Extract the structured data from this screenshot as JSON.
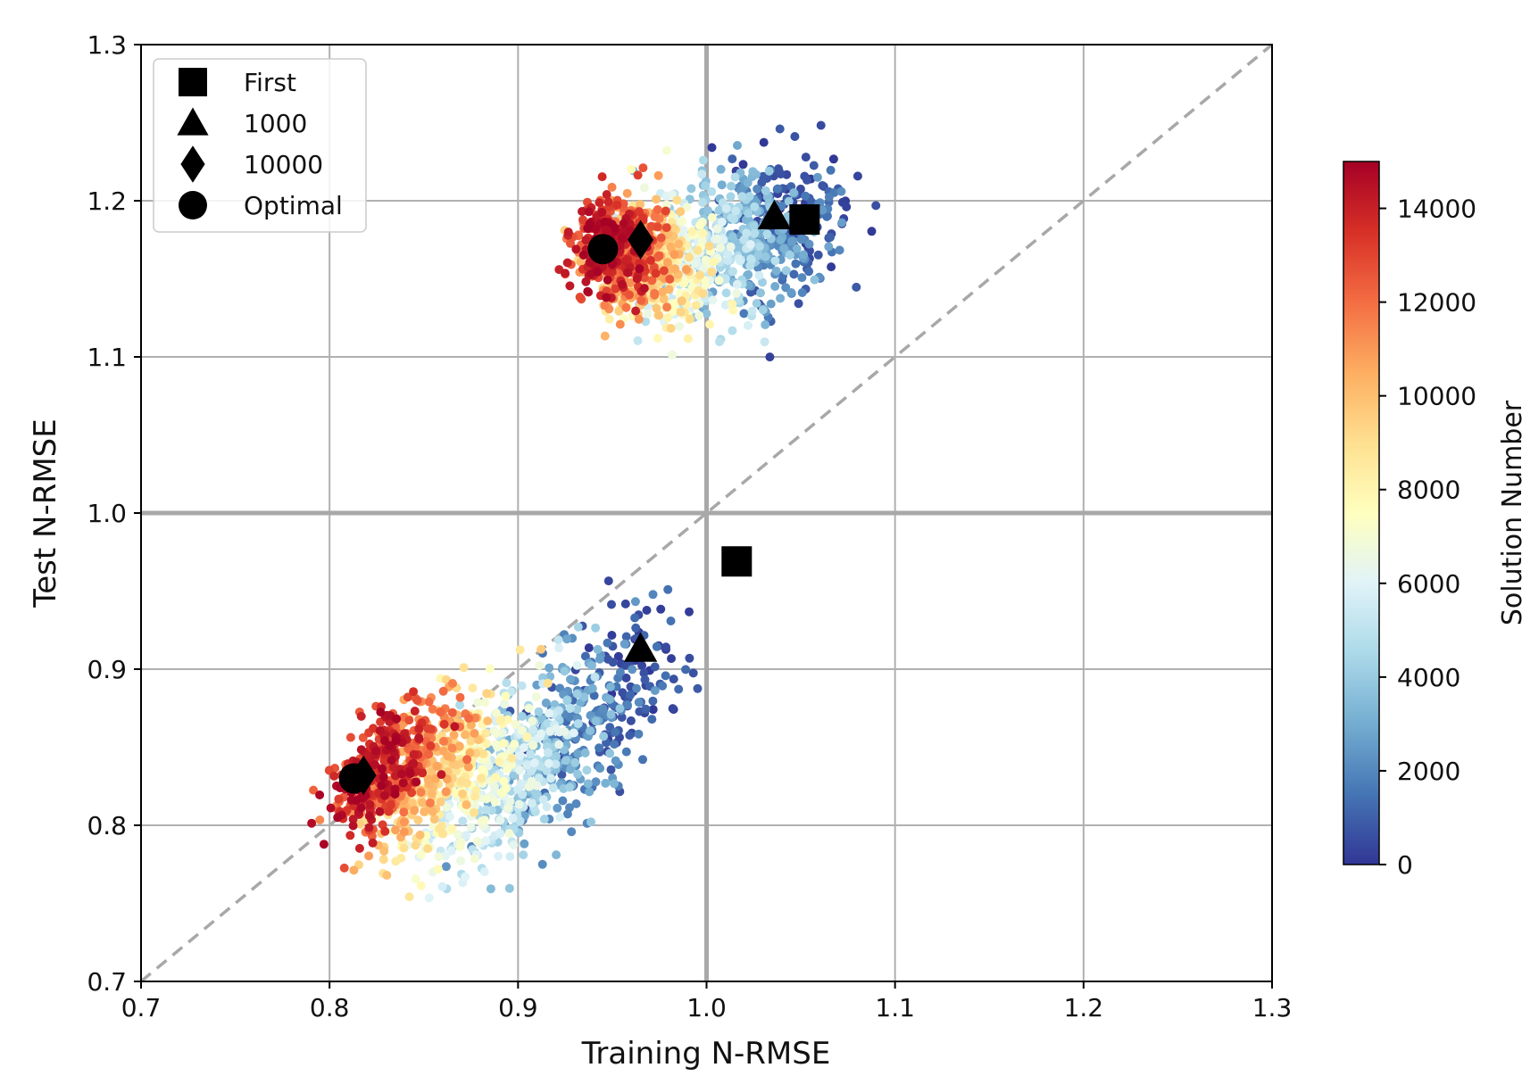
{
  "chart_data": {
    "type": "scatter",
    "title": "",
    "xlabel": "Training N-RMSE",
    "ylabel": "Test N-RMSE",
    "xlim": [
      0.7,
      1.3
    ],
    "ylim": [
      0.7,
      1.3
    ],
    "xticks": [
      "0.7",
      "0.8",
      "0.9",
      "1.0",
      "1.1",
      "1.2",
      "1.3"
    ],
    "yticks": [
      "0.7",
      "0.8",
      "0.9",
      "1.0",
      "1.1",
      "1.2",
      "1.3"
    ],
    "grid": true,
    "reference_lines": {
      "diagonal_y_equals_x": true,
      "vertical_x": 1.0,
      "horizontal_y": 1.0
    },
    "colorbar": {
      "label": "Solution Number",
      "range": [
        0,
        15000
      ],
      "ticks": [
        "0",
        "2000",
        "4000",
        "6000",
        "8000",
        "10000",
        "12000",
        "14000"
      ],
      "colormap": "RdYlBu_r",
      "stops": [
        "#313695",
        "#4575b4",
        "#74add1",
        "#abd9e9",
        "#e0f3f8",
        "#ffffbf",
        "#fee090",
        "#fdae61",
        "#f46d43",
        "#d73027",
        "#a50026"
      ]
    },
    "clusters": [
      {
        "name": "upper",
        "solution_trend": [
          {
            "solution": 0,
            "x": 1.05,
            "y": 1.195
          },
          {
            "solution": 2000,
            "x": 1.035,
            "y": 1.18
          },
          {
            "solution": 4000,
            "x": 1.01,
            "y": 1.17
          },
          {
            "solution": 6000,
            "x": 0.99,
            "y": 1.16
          },
          {
            "solution": 8000,
            "x": 0.975,
            "y": 1.155
          },
          {
            "solution": 10000,
            "x": 0.965,
            "y": 1.16
          },
          {
            "solution": 12000,
            "x": 0.955,
            "y": 1.17
          },
          {
            "solution": 14000,
            "x": 0.948,
            "y": 1.172
          }
        ]
      },
      {
        "name": "lower",
        "solution_trend": [
          {
            "solution": 0,
            "x": 0.96,
            "y": 0.89
          },
          {
            "solution": 2000,
            "x": 0.93,
            "y": 0.86
          },
          {
            "solution": 4000,
            "x": 0.905,
            "y": 0.835
          },
          {
            "solution": 6000,
            "x": 0.885,
            "y": 0.825
          },
          {
            "solution": 8000,
            "x": 0.865,
            "y": 0.83
          },
          {
            "solution": 10000,
            "x": 0.85,
            "y": 0.835
          },
          {
            "solution": 12000,
            "x": 0.835,
            "y": 0.84
          },
          {
            "solution": 14000,
            "x": 0.825,
            "y": 0.835
          }
        ]
      }
    ],
    "markers": [
      {
        "label": "First",
        "shape": "square",
        "points": [
          [
            1.052,
            1.188
          ],
          [
            1.016,
            0.969
          ]
        ]
      },
      {
        "label": "1000",
        "shape": "triangle",
        "points": [
          [
            1.036,
            1.19
          ],
          [
            0.965,
            0.913
          ]
        ]
      },
      {
        "label": "10000",
        "shape": "diamond",
        "points": [
          [
            0.965,
            1.175
          ],
          [
            0.818,
            0.832
          ]
        ]
      },
      {
        "label": "Optimal",
        "shape": "circle",
        "points": [
          [
            0.945,
            1.169
          ],
          [
            0.813,
            0.83
          ]
        ]
      }
    ],
    "legend": {
      "position": "top-left",
      "entries": [
        "First",
        "1000",
        "10000",
        "Optimal"
      ]
    }
  }
}
